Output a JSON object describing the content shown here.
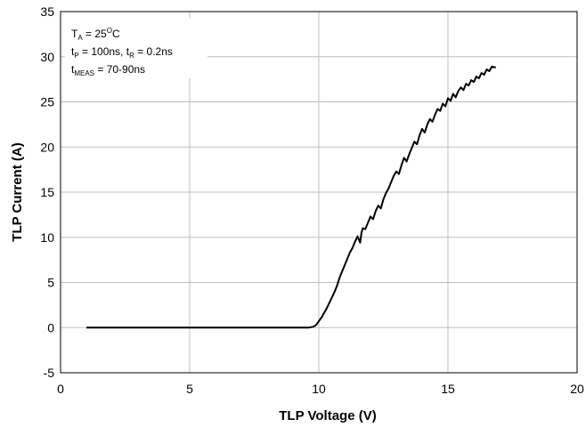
{
  "chart_data": {
    "type": "line",
    "title": "",
    "xlabel": "TLP Voltage (V)",
    "ylabel": "TLP Current (A)",
    "xlim": [
      0,
      20
    ],
    "ylim": [
      -5,
      35
    ],
    "xticks": [
      0,
      5,
      10,
      15,
      20
    ],
    "yticks": [
      -5,
      0,
      5,
      10,
      15,
      20,
      25,
      30,
      35
    ],
    "xtick_labels": [
      "0",
      "5",
      "10",
      "15",
      "20"
    ],
    "ytick_labels": [
      "-5",
      "0",
      "5",
      "10",
      "15",
      "20",
      "25",
      "30",
      "35"
    ],
    "grid": true,
    "legend": "none",
    "line_color": "#000000",
    "grid_color": "#bfbfbf",
    "annotation": {
      "line1": {
        "main": "T",
        "sub": "A",
        "rest1": " = 25",
        "sup": "O",
        "rest2": "C"
      },
      "line2": {
        "main": "t",
        "sub": "P",
        "rest1": " = 100ns, t",
        "sub2": "R",
        "rest2": " = 0.2ns"
      },
      "line3": {
        "main": "t",
        "sub": "MEAS",
        "rest1": " = 70-90ns"
      }
    },
    "series": [
      {
        "x": [
          1.0,
          3.0,
          5.0,
          7.0,
          9.0,
          9.6,
          9.8,
          9.9,
          10.0,
          10.1,
          10.2,
          10.3,
          10.4,
          10.5,
          10.6,
          10.7,
          10.8,
          10.9,
          11.0,
          11.1,
          11.2,
          11.3,
          11.4,
          11.5,
          11.6,
          11.65,
          11.7,
          11.8,
          11.9,
          12.0,
          12.1,
          12.2,
          12.3,
          12.4,
          12.5,
          12.6,
          12.7,
          12.8,
          12.9,
          13.0,
          13.1,
          13.2,
          13.3,
          13.4,
          13.5,
          13.6,
          13.7,
          13.8,
          13.9,
          14.0,
          14.1,
          14.2,
          14.3,
          14.4,
          14.5,
          14.6,
          14.7,
          14.8,
          14.9,
          15.0,
          15.1,
          15.2,
          15.3,
          15.4,
          15.5,
          15.6,
          15.7,
          15.8,
          15.9,
          16.0,
          16.1,
          16.2,
          16.3,
          16.4,
          16.5,
          16.6,
          16.7,
          16.85
        ],
        "y": [
          0.0,
          0.0,
          0.0,
          0.0,
          0.0,
          0.0,
          0.1,
          0.3,
          0.7,
          1.1,
          1.6,
          2.1,
          2.7,
          3.3,
          3.9,
          4.6,
          5.5,
          6.2,
          6.9,
          7.6,
          8.3,
          8.8,
          9.5,
          10.1,
          9.4,
          10.5,
          11.0,
          10.9,
          11.6,
          12.3,
          12.0,
          12.9,
          13.5,
          13.2,
          14.2,
          14.9,
          15.4,
          16.1,
          16.8,
          17.3,
          17.0,
          18.0,
          18.8,
          18.4,
          19.2,
          19.9,
          20.6,
          20.3,
          21.3,
          22.0,
          21.6,
          22.5,
          23.1,
          22.8,
          23.6,
          24.2,
          24.0,
          24.8,
          24.5,
          25.4,
          25.1,
          25.9,
          25.5,
          26.2,
          26.6,
          26.3,
          27.0,
          26.8,
          27.4,
          27.2,
          27.8,
          27.6,
          28.2,
          28.0,
          28.6,
          28.4,
          28.9,
          28.8
        ]
      }
    ]
  }
}
